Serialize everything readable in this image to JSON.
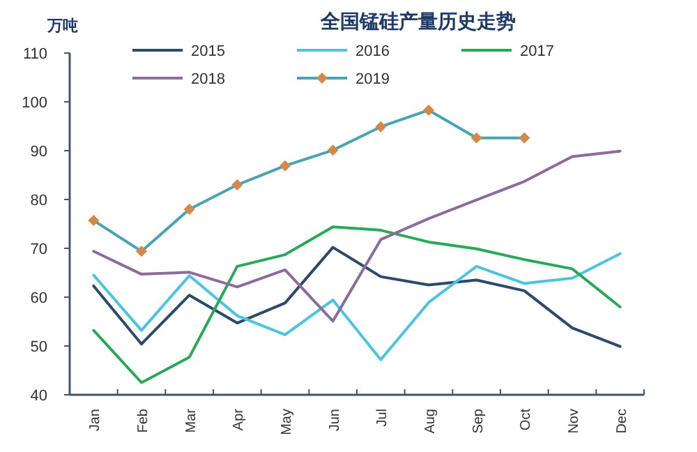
{
  "chart_data": {
    "type": "line",
    "title": "全国锰硅产量历史走势",
    "ylabel": "万吨",
    "categories": [
      "Jan",
      "Feb",
      "Mar",
      "Apr",
      "May",
      "Jun",
      "Jul",
      "Aug",
      "Sep",
      "Oct",
      "Nov",
      "Dec"
    ],
    "ylim": [
      40,
      110
    ],
    "yticks": [
      40,
      50,
      60,
      70,
      80,
      90,
      100,
      110
    ],
    "grid": false,
    "legend": "top",
    "series": [
      {
        "name": "2015",
        "color": "#2e4a6b",
        "marker": "none",
        "values": [
          62.3,
          50.4,
          60.4,
          54.7,
          58.8,
          70.2,
          64.2,
          62.5,
          63.5,
          61.3,
          53.7,
          49.9
        ]
      },
      {
        "name": "2016",
        "color": "#4cc3e0",
        "marker": "none",
        "values": [
          64.5,
          53.2,
          64.4,
          56.2,
          52.3,
          59.4,
          47.2,
          58.9,
          66.3,
          62.8,
          63.9,
          68.9
        ]
      },
      {
        "name": "2017",
        "color": "#2aa85a",
        "marker": "none",
        "values": [
          53.2,
          42.5,
          47.7,
          66.3,
          68.7,
          74.4,
          73.7,
          71.3,
          69.9,
          67.7,
          65.8,
          58.0
        ]
      },
      {
        "name": "2018",
        "color": "#8a6d9a",
        "marker": "none",
        "values": [
          69.4,
          64.7,
          65.1,
          62.1,
          65.6,
          55.1,
          71.8,
          76.1,
          79.9,
          83.7,
          88.8,
          89.9
        ]
      },
      {
        "name": "2019",
        "color": "#4aa3b0",
        "marker": "diamond",
        "values": [
          75.7,
          69.4,
          78.0,
          83.0,
          86.9,
          90.1,
          94.9,
          98.3,
          92.6,
          92.6,
          null,
          null
        ]
      }
    ]
  }
}
